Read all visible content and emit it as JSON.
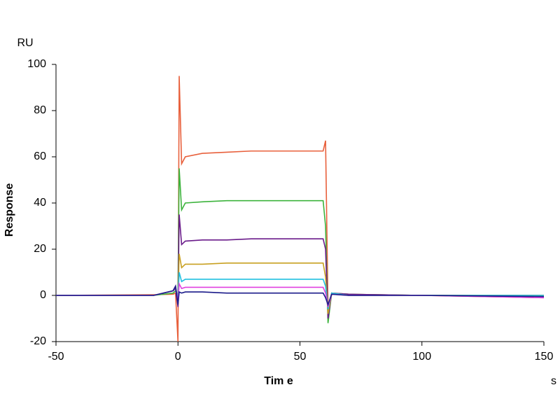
{
  "chart_data": {
    "type": "line",
    "y_unit": "RU",
    "y_label": "Response",
    "x_label": "Tim e",
    "x_unit": "s",
    "x": [
      -50,
      -10,
      -2,
      -1,
      0,
      0.5,
      1.5,
      3,
      10,
      20,
      30,
      40,
      50,
      58.5,
      59.5,
      60.5,
      61.5,
      63,
      70,
      100,
      150
    ],
    "xlim": [
      -50,
      150
    ],
    "xticks": [
      -50,
      0,
      50,
      100,
      150
    ],
    "ylim": [
      -20,
      100
    ],
    "yticks": [
      -20,
      0,
      20,
      40,
      60,
      80,
      100
    ],
    "grid": false,
    "series": [
      {
        "name": null,
        "color": "#e8603c",
        "values": [
          0,
          0.3,
          0.5,
          1,
          -20,
          95,
          57,
          60,
          61.5,
          62,
          62.5,
          62.5,
          62.5,
          62.5,
          62.5,
          67,
          -5,
          1,
          0.5,
          0,
          -1
        ]
      },
      {
        "name": null,
        "color": "#3cb33c",
        "values": [
          0,
          0,
          1,
          2,
          0,
          55,
          37,
          40,
          40.5,
          41,
          41,
          41,
          41,
          41,
          41,
          30,
          -12,
          1,
          0.5,
          0,
          0
        ]
      },
      {
        "name": null,
        "color": "#6a1b8a",
        "values": [
          0,
          0,
          2,
          3,
          -5,
          35,
          22,
          23.5,
          24,
          24,
          24.5,
          24.5,
          24.5,
          24.5,
          24.5,
          20,
          -10,
          1,
          0.5,
          0,
          0
        ]
      },
      {
        "name": null,
        "color": "#c8a020",
        "values": [
          0,
          0,
          2,
          4,
          -3,
          18,
          12,
          13.5,
          13.5,
          14,
          14,
          14,
          14,
          14,
          14,
          8,
          -8,
          1,
          0,
          0,
          0
        ]
      },
      {
        "name": null,
        "color": "#20c0e0",
        "values": [
          0,
          0,
          2,
          4,
          -2,
          10,
          6,
          7,
          7,
          7,
          7,
          7,
          7,
          7,
          7,
          4,
          -6,
          1,
          0,
          0,
          0
        ]
      },
      {
        "name": null,
        "color": "#e040e0",
        "values": [
          0,
          0,
          2,
          4,
          -3,
          5,
          3,
          3.5,
          3.5,
          3.5,
          3.5,
          3.5,
          3.5,
          3.5,
          3.5,
          1,
          -5,
          0.5,
          0,
          0,
          -1
        ]
      },
      {
        "name": null,
        "color": "#1a1a8a",
        "values": [
          0,
          0,
          2,
          4,
          -4,
          1.5,
          1,
          1.5,
          1.5,
          1,
          1,
          1,
          1,
          1,
          1,
          -1,
          -4,
          0.5,
          0,
          0,
          -0.5
        ]
      }
    ]
  }
}
